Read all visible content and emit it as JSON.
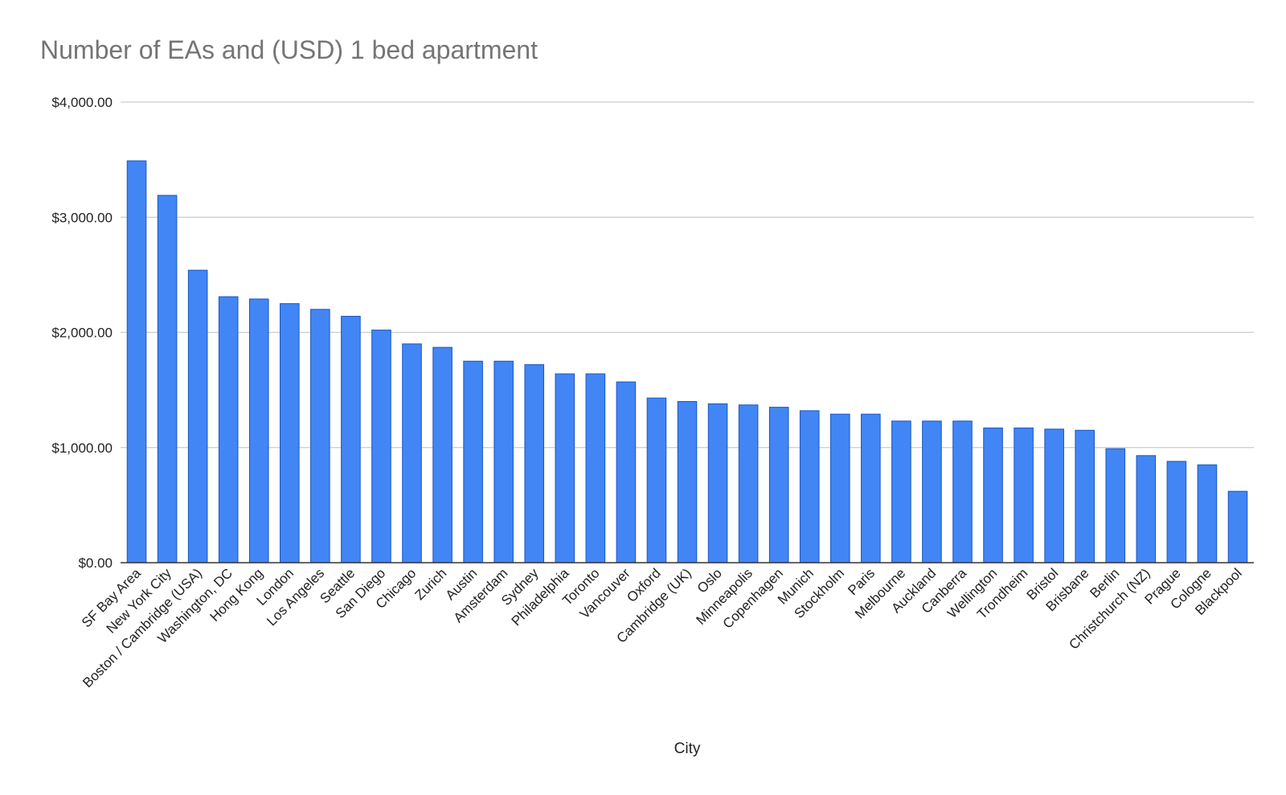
{
  "chart_data": {
    "type": "bar",
    "title": "Number of EAs and (USD) 1 bed apartment",
    "xlabel": "City",
    "ylabel": "",
    "ylim": [
      0,
      4000
    ],
    "yticks": [
      0,
      1000,
      2000,
      3000,
      4000
    ],
    "ytick_labels": [
      "$0.00",
      "$1,000.00",
      "$2,000.00",
      "$3,000.00",
      "$4,000.00"
    ],
    "grid": true,
    "legend": "none",
    "bar_color": "#4285f4",
    "bar_edge_color": "#1a56c4",
    "categories": [
      "SF Bay Area",
      "New York City",
      "Boston / Cambridge (USA)",
      "Washington, DC",
      "Hong Kong",
      "London",
      "Los Angeles",
      "Seattle",
      "San Diego",
      "Chicago",
      "Zurich",
      "Austin",
      "Amsterdam",
      "Sydney",
      "Philadelphia",
      "Toronto",
      "Vancouver",
      "Oxford",
      "Cambridge (UK)",
      "Oslo",
      "Minneapolis",
      "Copenhagen",
      "Munich",
      "Stockholm",
      "Paris",
      "Melbourne",
      "Auckland",
      "Canberra",
      "Wellington",
      "Trondheim",
      "Bristol",
      "Brisbane",
      "Berlin",
      "Christchurch (NZ)",
      "Prague",
      "Cologne",
      "Blackpool"
    ],
    "values": [
      3490,
      3190,
      2540,
      2310,
      2290,
      2250,
      2200,
      2140,
      2020,
      1900,
      1870,
      1750,
      1750,
      1720,
      1640,
      1640,
      1570,
      1430,
      1400,
      1380,
      1370,
      1350,
      1320,
      1290,
      1290,
      1230,
      1230,
      1230,
      1170,
      1170,
      1160,
      1150,
      990,
      930,
      880,
      850,
      620
    ]
  }
}
